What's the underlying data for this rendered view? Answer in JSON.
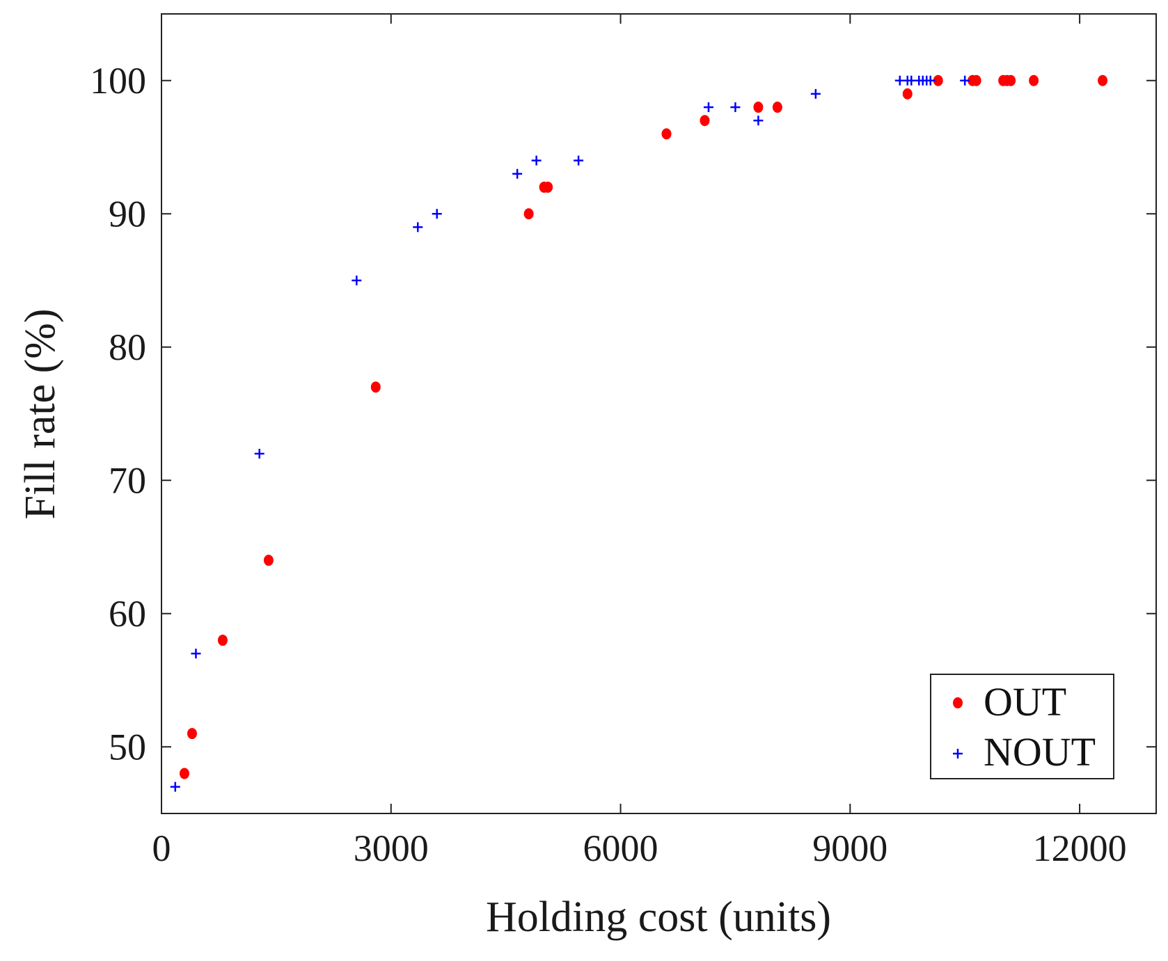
{
  "chart_data": {
    "type": "scatter",
    "title": "",
    "xlabel": "Holding cost (units)",
    "ylabel": "Fill rate (%)",
    "xlim": [
      0,
      13000
    ],
    "ylim": [
      45,
      105
    ],
    "xticks": [
      0,
      3000,
      6000,
      9000,
      12000
    ],
    "xtick_labels": [
      "0",
      "3000",
      "6000",
      "9000",
      "12000"
    ],
    "yticks": [
      50,
      60,
      70,
      80,
      90,
      100
    ],
    "ytick_labels": [
      "50",
      "60",
      "70",
      "80",
      "90",
      "100"
    ],
    "grid": false,
    "legend_position": "bottom-right",
    "series": [
      {
        "name": "OUT",
        "marker": "dot",
        "color": "#ff0000",
        "points": [
          [
            300,
            48
          ],
          [
            400,
            51
          ],
          [
            800,
            58
          ],
          [
            1400,
            64
          ],
          [
            2800,
            77
          ],
          [
            4800,
            90
          ],
          [
            5000,
            92
          ],
          [
            5050,
            92
          ],
          [
            6600,
            96
          ],
          [
            7100,
            97
          ],
          [
            7800,
            98
          ],
          [
            8050,
            98
          ],
          [
            9750,
            99
          ],
          [
            10150,
            100
          ],
          [
            10600,
            100
          ],
          [
            10650,
            100
          ],
          [
            11000,
            100
          ],
          [
            11050,
            100
          ],
          [
            11100,
            100
          ],
          [
            11400,
            100
          ],
          [
            12300,
            100
          ]
        ]
      },
      {
        "name": "NOUT",
        "marker": "plus",
        "color": "#0000ff",
        "points": [
          [
            180,
            47
          ],
          [
            450,
            57
          ],
          [
            1280,
            72
          ],
          [
            2550,
            85
          ],
          [
            3350,
            89
          ],
          [
            3600,
            90
          ],
          [
            4650,
            93
          ],
          [
            4900,
            94
          ],
          [
            5450,
            94
          ],
          [
            7150,
            98
          ],
          [
            7500,
            98
          ],
          [
            7800,
            97
          ],
          [
            8550,
            99
          ],
          [
            9650,
            100
          ],
          [
            9750,
            100
          ],
          [
            9800,
            100
          ],
          [
            9900,
            100
          ],
          [
            9950,
            100
          ],
          [
            10000,
            100
          ],
          [
            10050,
            100
          ],
          [
            10500,
            100
          ]
        ]
      }
    ]
  }
}
